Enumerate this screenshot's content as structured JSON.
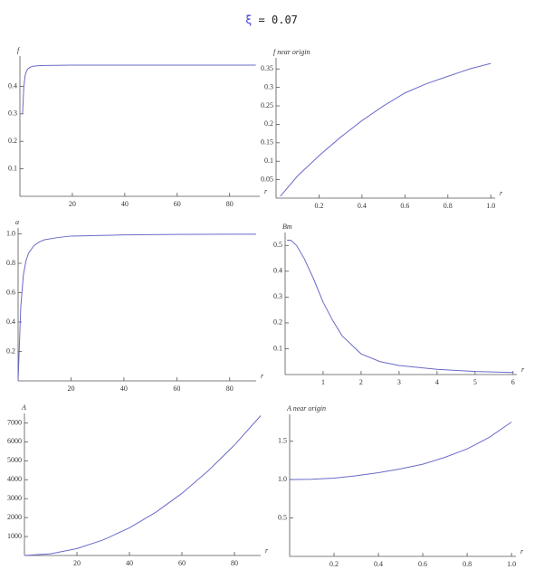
{
  "title": {
    "symbol": "ξ",
    "text": "= 0.07"
  },
  "chart_data": [
    {
      "type": "line",
      "ylabel": "f",
      "xlabel": "r",
      "color": "#6a6ac8",
      "x": [
        1,
        1.5,
        2,
        2.5,
        3,
        4,
        5,
        7,
        10,
        20,
        40,
        60,
        90
      ],
      "values": [
        0.3,
        0.4,
        0.44,
        0.455,
        0.463,
        0.47,
        0.473,
        0.475,
        0.476,
        0.477,
        0.477,
        0.477,
        0.477
      ],
      "xlim": [
        0,
        91.5
      ],
      "ylim": [
        0,
        0.51
      ],
      "xticks": [
        20,
        40,
        60,
        80
      ],
      "yticks": [
        0.1,
        0.2,
        0.3,
        0.4
      ]
    },
    {
      "type": "line",
      "ylabel": "f near origin",
      "xlabel": "r",
      "color": "#6a6ac8",
      "x": [
        0.02,
        0.1,
        0.2,
        0.3,
        0.4,
        0.5,
        0.6,
        0.7,
        0.8,
        0.9,
        1.0
      ],
      "values": [
        0.005,
        0.06,
        0.115,
        0.165,
        0.21,
        0.25,
        0.285,
        0.31,
        0.33,
        0.35,
        0.365
      ],
      "xlim": [
        0,
        1.02
      ],
      "ylim": [
        0,
        0.38
      ],
      "xticks": [
        0.2,
        0.4,
        0.6,
        0.8,
        {
          "value": 1,
          "label": "1.0"
        }
      ],
      "yticks": [
        0.05,
        0.1,
        0.15,
        0.2,
        0.25,
        0.3,
        0.35
      ]
    },
    {
      "type": "line",
      "ylabel": "a",
      "xlabel": "r",
      "color": "#6a6ac8",
      "x": [
        0,
        1,
        2,
        3,
        4,
        6,
        8,
        10,
        15,
        20,
        40,
        60,
        90
      ],
      "values": [
        0,
        0.5,
        0.72,
        0.82,
        0.87,
        0.92,
        0.945,
        0.96,
        0.975,
        0.985,
        0.993,
        0.996,
        0.998
      ],
      "xlim": [
        0,
        90
      ],
      "ylim": [
        0,
        1.04
      ],
      "xticks": [
        20,
        40,
        60,
        80
      ],
      "yticks": [
        0.2,
        0.4,
        0.6,
        0.8,
        {
          "value": 1,
          "label": "1.0"
        }
      ]
    },
    {
      "type": "line",
      "ylabel": "Bm",
      "xlabel": "r",
      "color": "#6a6ac8",
      "x": [
        0.05,
        0.15,
        0.3,
        0.5,
        0.75,
        1,
        1.25,
        1.5,
        2,
        2.5,
        3,
        4,
        5,
        6
      ],
      "values": [
        0.52,
        0.52,
        0.5,
        0.45,
        0.37,
        0.28,
        0.21,
        0.15,
        0.08,
        0.05,
        0.035,
        0.02,
        0.012,
        0.008
      ],
      "xlim": [
        0,
        6.1
      ],
      "ylim": [
        0,
        0.55
      ],
      "xticks": [
        1,
        2,
        3,
        4,
        5,
        6
      ],
      "yticks": [
        0.1,
        0.2,
        0.3,
        0.4,
        0.5
      ]
    },
    {
      "type": "line",
      "ylabel": "A",
      "xlabel": "r",
      "color": "#6a6ac8",
      "x": [
        0,
        10,
        20,
        30,
        40,
        50,
        60,
        70,
        80,
        90
      ],
      "values": [
        1,
        92,
        365,
        820,
        1460,
        2280,
        3280,
        4470,
        5830,
        7380
      ],
      "xlim": [
        0,
        90
      ],
      "ylim": [
        0,
        7500
      ],
      "xticks": [
        20,
        40,
        60,
        80
      ],
      "yticks": [
        1000,
        2000,
        3000,
        4000,
        5000,
        6000,
        7000
      ]
    },
    {
      "type": "line",
      "ylabel": "A near origin",
      "xlabel": "r",
      "color": "#6a6ac8",
      "x": [
        0,
        0.1,
        0.2,
        0.3,
        0.4,
        0.5,
        0.6,
        0.7,
        0.8,
        0.9,
        1.0
      ],
      "values": [
        1.0,
        1.005,
        1.02,
        1.05,
        1.09,
        1.14,
        1.2,
        1.29,
        1.4,
        1.55,
        1.75
      ],
      "xlim": [
        0,
        1.02
      ],
      "ylim": [
        0,
        1.85
      ],
      "xticks": [
        0.2,
        0.4,
        0.6,
        0.8,
        {
          "value": 1,
          "label": "1.0"
        }
      ],
      "yticks": [
        0.5,
        {
          "value": 1,
          "label": "1.0"
        },
        1.5
      ]
    }
  ]
}
